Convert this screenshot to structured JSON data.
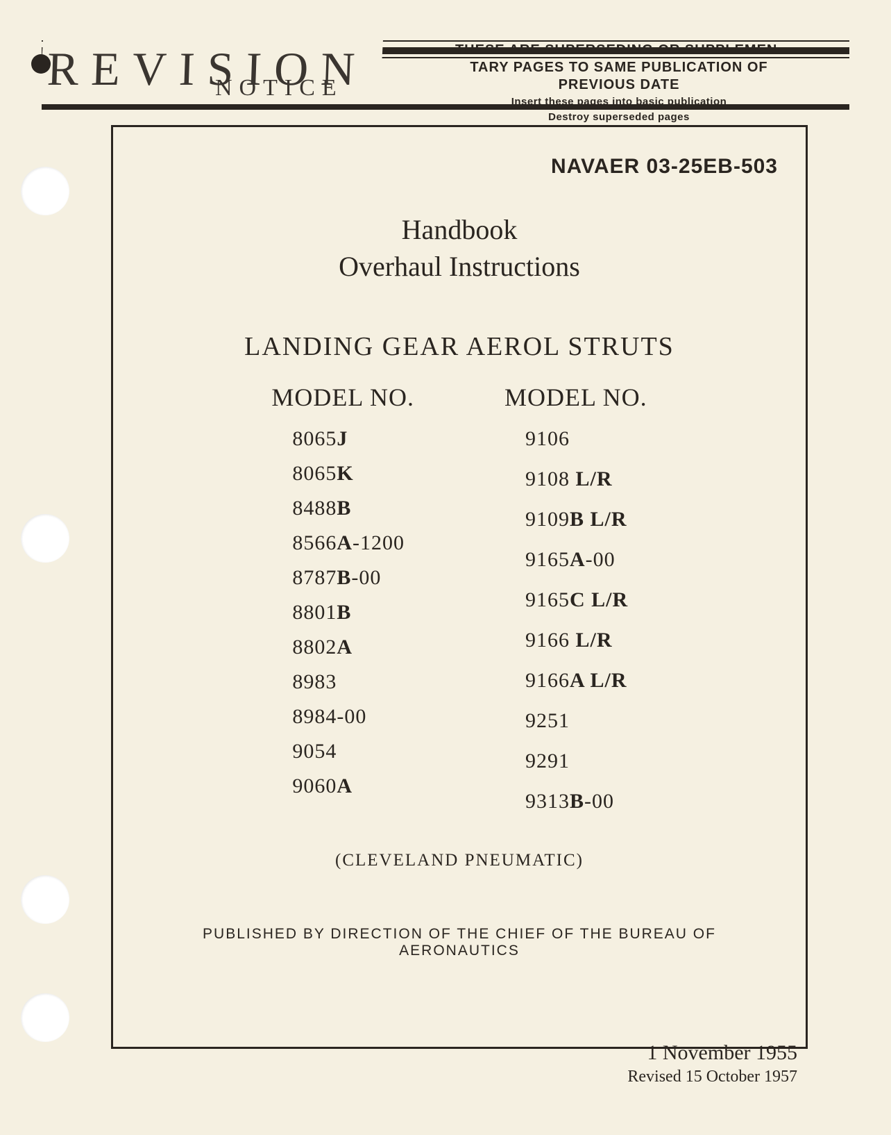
{
  "header": {
    "revision": "REVISION",
    "notice": "NOTICE",
    "superseding_line1": "THESE ARE SUPERSEDING OR SUPPLEMEN-",
    "superseding_line2": "TARY PAGES TO SAME PUBLICATION OF",
    "superseding_line3": "PREVIOUS DATE",
    "insert_line": "Insert these pages into basic publication",
    "destroy_line": "Destroy superseded pages"
  },
  "document": {
    "number": "NAVAER 03-25EB-503",
    "handbook": "Handbook",
    "subtitle": "Overhaul Instructions",
    "section_title": "LANDING GEAR AEROL STRUTS",
    "model_header_left": "MODEL NO.",
    "model_header_right": "MODEL NO.",
    "manufacturer": "(CLEVELAND PNEUMATIC)",
    "published_by": "PUBLISHED BY DIRECTION OF THE CHIEF OF THE BUREAU OF AERONAUTICS"
  },
  "models_left": [
    {
      "prefix": "8065",
      "bold": "J",
      "suffix": ""
    },
    {
      "prefix": "8065",
      "bold": "K",
      "suffix": ""
    },
    {
      "prefix": "8488",
      "bold": "B",
      "suffix": ""
    },
    {
      "prefix": "8566",
      "bold": "A",
      "suffix": "-1200"
    },
    {
      "prefix": "8787",
      "bold": "B",
      "suffix": "-00"
    },
    {
      "prefix": "8801",
      "bold": "B",
      "suffix": ""
    },
    {
      "prefix": "8802",
      "bold": "A",
      "suffix": ""
    },
    {
      "prefix": "8983",
      "bold": "",
      "suffix": ""
    },
    {
      "prefix": "8984-00",
      "bold": "",
      "suffix": ""
    },
    {
      "prefix": "9054",
      "bold": "",
      "suffix": ""
    },
    {
      "prefix": "9060",
      "bold": "A",
      "suffix": ""
    }
  ],
  "models_right": [
    {
      "prefix": "9106",
      "bold": "",
      "suffix": ""
    },
    {
      "prefix": "9108 ",
      "bold": "L/R",
      "suffix": ""
    },
    {
      "prefix": "9109",
      "bold": "B L/R",
      "suffix": ""
    },
    {
      "prefix": "9165",
      "bold": "A",
      "suffix": "-00"
    },
    {
      "prefix": "9165",
      "bold": "C L/R",
      "suffix": ""
    },
    {
      "prefix": "9166 ",
      "bold": "L/R",
      "suffix": ""
    },
    {
      "prefix": "9166",
      "bold": "A L/R",
      "suffix": ""
    },
    {
      "prefix": "9251",
      "bold": "",
      "suffix": ""
    },
    {
      "prefix": "9291",
      "bold": "",
      "suffix": ""
    },
    {
      "prefix": "9313",
      "bold": "B",
      "suffix": "-00"
    }
  ],
  "dates": {
    "main": "1 November 1955",
    "revised": "Revised 15 October 1957"
  },
  "colors": {
    "page_background": "#f5f0e1",
    "text_color": "#2a2520",
    "border_color": "#2a2520"
  },
  "typography": {
    "title_fontsize": 40,
    "section_fontsize": 38,
    "model_header_fontsize": 36,
    "model_item_fontsize": 30,
    "doc_number_fontsize": 30,
    "revision_fontsize": 68
  }
}
